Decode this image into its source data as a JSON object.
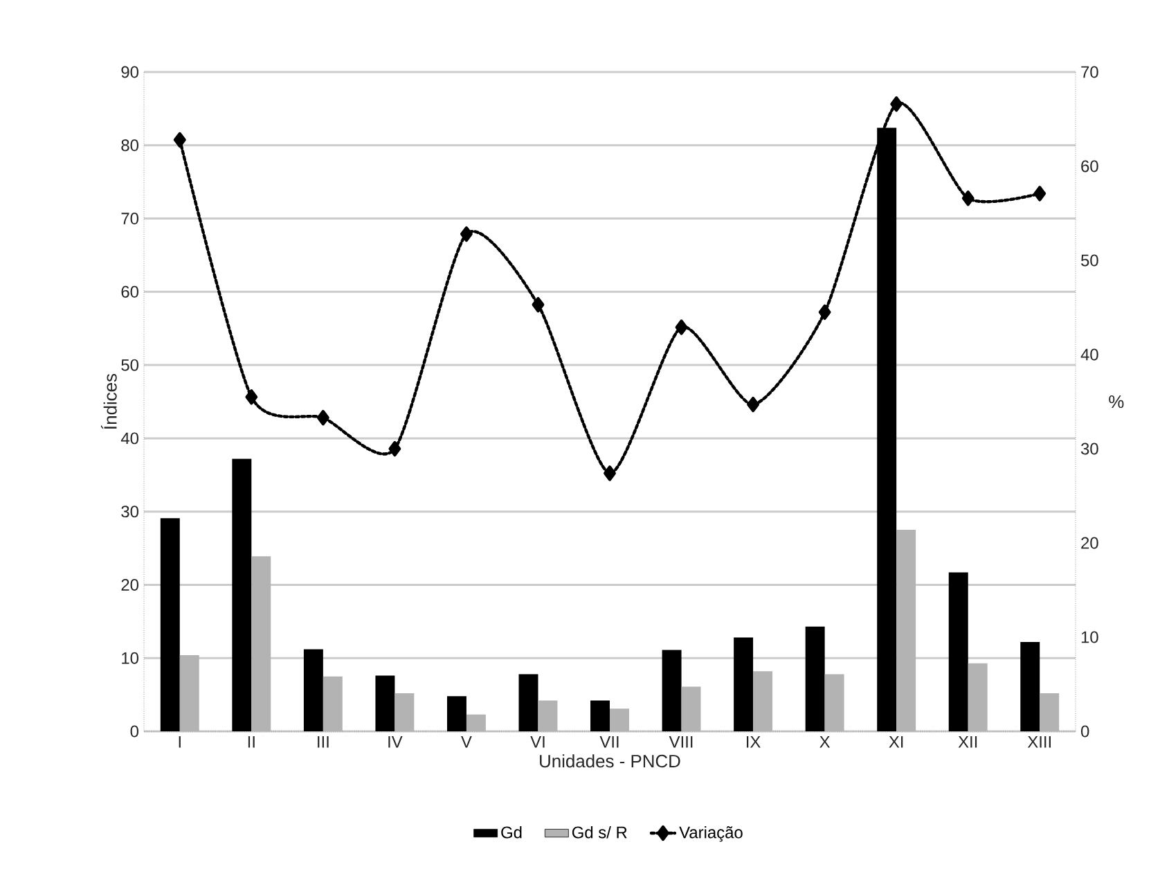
{
  "chart_data": {
    "type": "bar",
    "categories": [
      "I",
      "II",
      "III",
      "IV",
      "V",
      "VI",
      "VII",
      "VIII",
      "IX",
      "X",
      "XI",
      "XII",
      "XIII"
    ],
    "xlabel": "Unidades - PNCD",
    "ylabel": "Índices",
    "y2label": "%",
    "ylim": [
      0,
      90
    ],
    "yticks": [
      0,
      10,
      20,
      30,
      40,
      50,
      60,
      70,
      80,
      90
    ],
    "y2lim": [
      0,
      70
    ],
    "y2ticks": [
      0,
      10,
      20,
      30,
      40,
      50,
      60,
      70
    ],
    "grid": "y",
    "legend": "bottom",
    "series": [
      {
        "name": "Gd",
        "color": "#000000",
        "values": [
          29.1,
          37.2,
          11.2,
          7.6,
          4.8,
          7.8,
          4.2,
          11.1,
          12.8,
          14.3,
          82.4,
          21.7,
          12.2
        ]
      },
      {
        "name": "Gd s/ R",
        "color": "#b3b3b3",
        "values": [
          10.4,
          23.9,
          7.5,
          5.2,
          2.3,
          4.2,
          3.1,
          6.1,
          8.2,
          7.8,
          27.5,
          9.3,
          5.2
        ]
      },
      {
        "name": "Variação",
        "type": "line",
        "axis": "y2",
        "marker": "diamond",
        "line_style": "dotted",
        "color": "#000000",
        "values": [
          62.8,
          35.5,
          33.3,
          30.0,
          52.8,
          45.3,
          27.4,
          42.9,
          34.7,
          44.5,
          66.6,
          56.6,
          57.1
        ]
      }
    ]
  }
}
